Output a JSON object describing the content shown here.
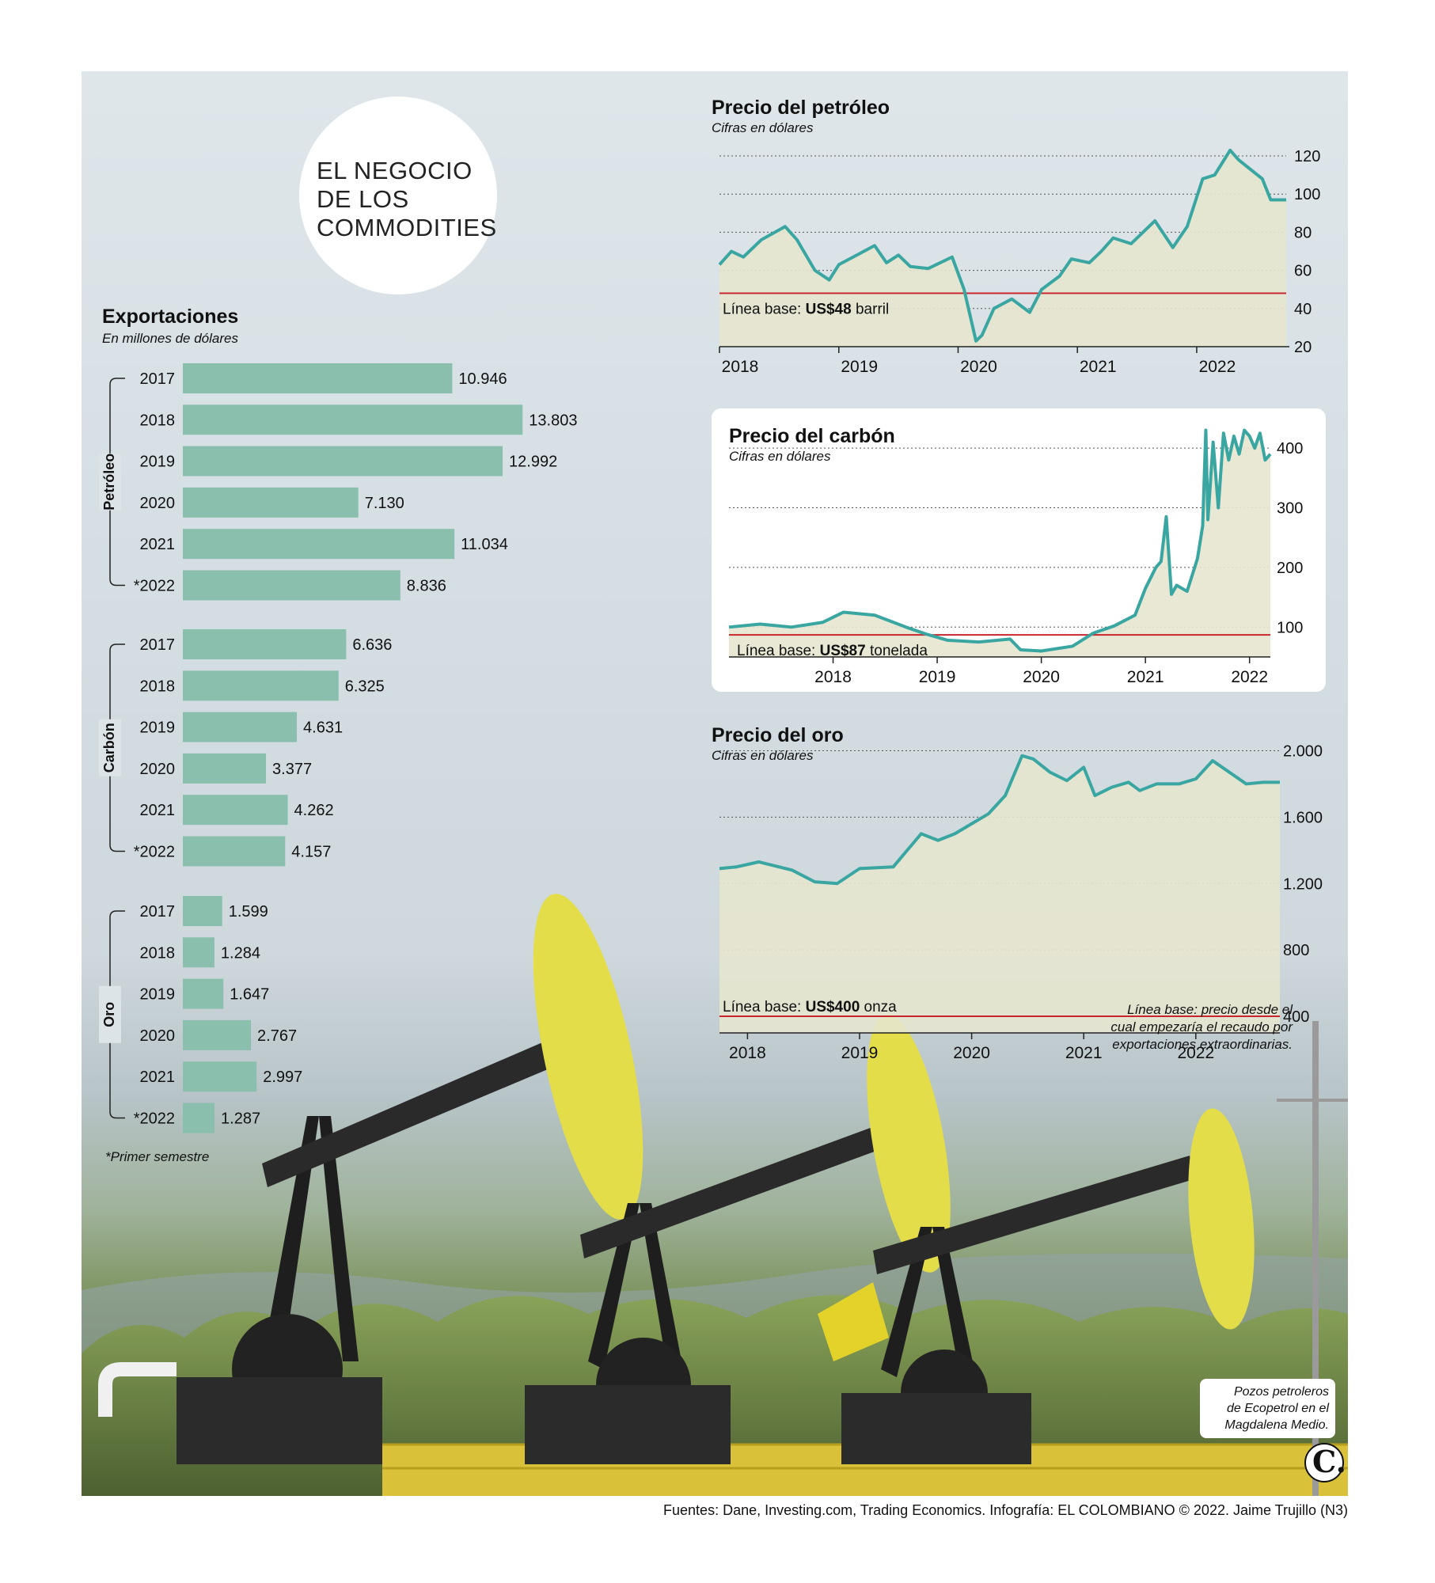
{
  "header": {
    "title": "EL NEGOCIO\nDE LOS\nCOMMODITIES"
  },
  "exports": {
    "title": "Exportaciones",
    "subtitle": "En millones de dólares",
    "footnote": "*Primer semestre"
  },
  "oil": {
    "title": "Precio del petróleo",
    "subtitle": "Cifras en dólares",
    "baseline_label": "Línea base:",
    "baseline_value": "US$48",
    "baseline_unit": "barril"
  },
  "coal": {
    "title": "Precio del carbón",
    "subtitle": "Cifras en dólares",
    "baseline_label": "Línea base:",
    "baseline_value": "US$87",
    "baseline_unit": "tonelada"
  },
  "gold": {
    "title": "Precio del oro",
    "subtitle": "Cifras en dólares",
    "baseline_label": "Línea base:",
    "baseline_value": "US$400",
    "baseline_unit": "onza"
  },
  "notes": {
    "baseline_note": "Línea base: precio desde el\ncual empezaría el recaudo por\nexportaciones extraordinarias.",
    "photo_caption": "Pozos petroleros\nde Ecopetrol en el\nMagdalena Medio."
  },
  "footer": {
    "sources": "Fuentes: Dane, Investing.com, Trading Economics. Infografía: EL COLOMBIANO © 2022. Jaime Trujillo (N3)"
  },
  "colors": {
    "bar": "#8bbfad",
    "line": "#3aa6a1",
    "area": "#e6e6cf",
    "baseline": "#c8262e"
  },
  "chart_data": [
    {
      "type": "bar",
      "title": "Exportaciones",
      "subtitle": "En millones de dólares",
      "orientation": "horizontal",
      "groups": [
        {
          "name": "Petróleo",
          "categories": [
            "2017",
            "2018",
            "2019",
            "2020",
            "2021",
            "*2022"
          ],
          "values": [
            10946,
            13803,
            12992,
            7130,
            11034,
            8836
          ],
          "labels": [
            "10.946",
            "13.803",
            "12.992",
            "7.130",
            "11.034",
            "8.836"
          ]
        },
        {
          "name": "Carbón",
          "categories": [
            "2017",
            "2018",
            "2019",
            "2020",
            "2021",
            "*2022"
          ],
          "values": [
            6636,
            6325,
            4631,
            3377,
            4262,
            4157
          ],
          "labels": [
            "6.636",
            "6.325",
            "4.631",
            "3.377",
            "4.262",
            "4.157"
          ]
        },
        {
          "name": "Oro",
          "categories": [
            "2017",
            "2018",
            "2019",
            "2020",
            "2021",
            "*2022"
          ],
          "values": [
            1599,
            1284,
            1647,
            2767,
            2997,
            1287
          ],
          "labels": [
            "1.599",
            "1.284",
            "1.647",
            "2.767",
            "2.997",
            "1.287"
          ]
        }
      ]
    },
    {
      "type": "area",
      "title": "Precio del petróleo",
      "subtitle": "Cifras en dólares",
      "xlim": [
        2018.0,
        2022.75
      ],
      "ylim": [
        20,
        125
      ],
      "xticks": [
        2018,
        2019,
        2020,
        2021,
        2022
      ],
      "xtick_labels": [
        "2018",
        "2019",
        "2020",
        "2021",
        "2022"
      ],
      "yticks": [
        20,
        40,
        60,
        80,
        100,
        120
      ],
      "ytick_labels": [
        "20",
        "40",
        "60",
        "80",
        "100",
        "120"
      ],
      "baseline": 48,
      "x": [
        2017.9,
        2018.1,
        2018.2,
        2018.35,
        2018.55,
        2018.65,
        2018.8,
        2018.92,
        2019.0,
        2019.15,
        2019.3,
        2019.4,
        2019.5,
        2019.6,
        2019.75,
        2019.95,
        2020.05,
        2020.15,
        2020.2,
        2020.3,
        2020.45,
        2020.6,
        2020.7,
        2020.85,
        2020.95,
        2021.1,
        2021.2,
        2021.3,
        2021.45,
        2021.55,
        2021.65,
        2021.8,
        2021.92,
        2022.05,
        2022.15,
        2022.28,
        2022.35,
        2022.45,
        2022.55,
        2022.62,
        2022.75
      ],
      "y": [
        63,
        70,
        67,
        76,
        83,
        76,
        60,
        55,
        63,
        68,
        73,
        64,
        68,
        62,
        61,
        67,
        50,
        23,
        26,
        40,
        45,
        38,
        50,
        57,
        66,
        64,
        70,
        77,
        74,
        80,
        86,
        72,
        83,
        108,
        110,
        123,
        118,
        113,
        108,
        97,
        97
      ]
    },
    {
      "type": "area",
      "title": "Precio del carbón",
      "subtitle": "Cifras en dólares",
      "xlim": [
        2017.0,
        2022.2
      ],
      "ylim": [
        50,
        440
      ],
      "xticks": [
        2018,
        2019,
        2020,
        2021,
        2022
      ],
      "xtick_labels": [
        "2018",
        "2019",
        "2020",
        "2021",
        "2022"
      ],
      "yticks": [
        100,
        200,
        300,
        400
      ],
      "ytick_labels": [
        "100",
        "200",
        "300",
        "400"
      ],
      "baseline": 87,
      "x": [
        2017.0,
        2017.3,
        2017.6,
        2017.9,
        2018.1,
        2018.4,
        2018.7,
        2018.9,
        2019.1,
        2019.4,
        2019.7,
        2019.8,
        2020.0,
        2020.3,
        2020.5,
        2020.7,
        2020.9,
        2021.0,
        2021.1,
        2021.15,
        2021.2,
        2021.25,
        2021.3,
        2021.4,
        2021.5,
        2021.55,
        2021.58,
        2021.6,
        2021.65,
        2021.7,
        2021.75,
        2021.8,
        2021.85,
        2021.9,
        2021.95,
        2022.0,
        2022.05,
        2022.1,
        2022.15,
        2022.2
      ],
      "y": [
        100,
        105,
        100,
        108,
        125,
        120,
        100,
        88,
        78,
        75,
        80,
        62,
        60,
        68,
        90,
        102,
        120,
        165,
        200,
        210,
        285,
        155,
        170,
        160,
        215,
        270,
        430,
        280,
        410,
        300,
        425,
        380,
        420,
        390,
        430,
        420,
        400,
        425,
        380,
        390
      ]
    },
    {
      "type": "area",
      "title": "Precio del oro",
      "subtitle": "Cifras en dólares",
      "xlim": [
        2017.75,
        2022.75
      ],
      "ylim": [
        300,
        2050
      ],
      "xticks": [
        2018,
        2019,
        2020,
        2021,
        2022
      ],
      "xtick_labels": [
        "2018",
        "2019",
        "2020",
        "2021",
        "2022"
      ],
      "yticks": [
        400,
        800,
        1200,
        1600,
        2000
      ],
      "ytick_labels": [
        "400",
        "800",
        "1.200",
        "1.600",
        "2.000"
      ],
      "baseline": 400,
      "x": [
        2017.75,
        2017.9,
        2018.1,
        2018.4,
        2018.6,
        2018.8,
        2019.0,
        2019.3,
        2019.45,
        2019.55,
        2019.7,
        2019.85,
        2020.0,
        2020.15,
        2020.3,
        2020.45,
        2020.55,
        2020.7,
        2020.85,
        2021.0,
        2021.1,
        2021.25,
        2021.4,
        2021.5,
        2021.65,
        2021.85,
        2022.0,
        2022.15,
        2022.3,
        2022.45,
        2022.6,
        2022.75
      ],
      "y": [
        1290,
        1300,
        1330,
        1280,
        1210,
        1200,
        1290,
        1300,
        1420,
        1500,
        1460,
        1500,
        1560,
        1620,
        1730,
        1970,
        1950,
        1870,
        1820,
        1900,
        1730,
        1780,
        1810,
        1760,
        1800,
        1800,
        1830,
        1940,
        1870,
        1800,
        1810,
        1810
      ]
    }
  ]
}
